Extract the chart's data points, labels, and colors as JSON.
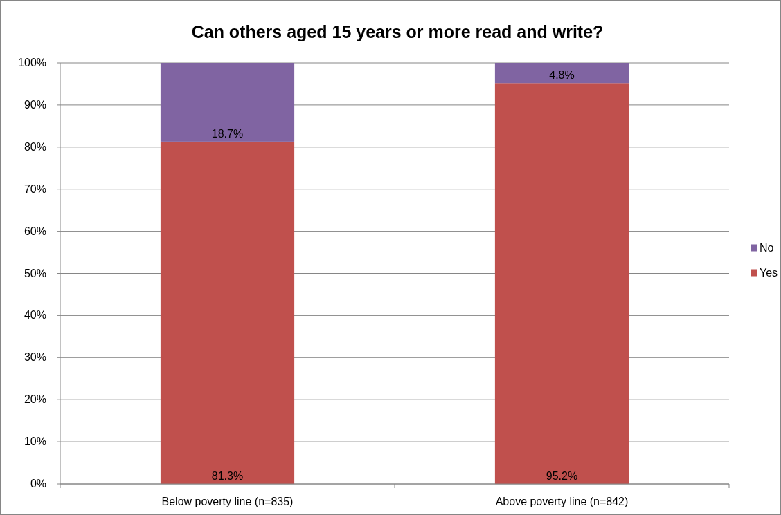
{
  "chart_data": {
    "type": "bar",
    "title": "Can others aged 15 years or more read and write?",
    "categories": [
      "Below poverty line (n=835)",
      "Above poverty line (n=842)"
    ],
    "stacked": true,
    "series": [
      {
        "name": "Yes",
        "color": "#c0504d",
        "values": [
          81.3,
          95.2
        ],
        "value_labels": [
          "81.3%",
          "95.2%"
        ]
      },
      {
        "name": "No",
        "color": "#8064a2",
        "values": [
          18.7,
          4.8
        ],
        "value_labels": [
          "18.7%",
          "4.8%"
        ]
      }
    ],
    "ylim": [
      0,
      100
    ],
    "yticks": [
      {
        "value": 0,
        "label": "0%"
      },
      {
        "value": 10,
        "label": "10%"
      },
      {
        "value": 20,
        "label": "20%"
      },
      {
        "value": 30,
        "label": "30%"
      },
      {
        "value": 40,
        "label": "40%"
      },
      {
        "value": 50,
        "label": "50%"
      },
      {
        "value": 60,
        "label": "60%"
      },
      {
        "value": 70,
        "label": "70%"
      },
      {
        "value": 80,
        "label": "80%"
      },
      {
        "value": 90,
        "label": "90%"
      },
      {
        "value": 100,
        "label": "100%"
      }
    ],
    "grid": "y",
    "legend": "right"
  }
}
